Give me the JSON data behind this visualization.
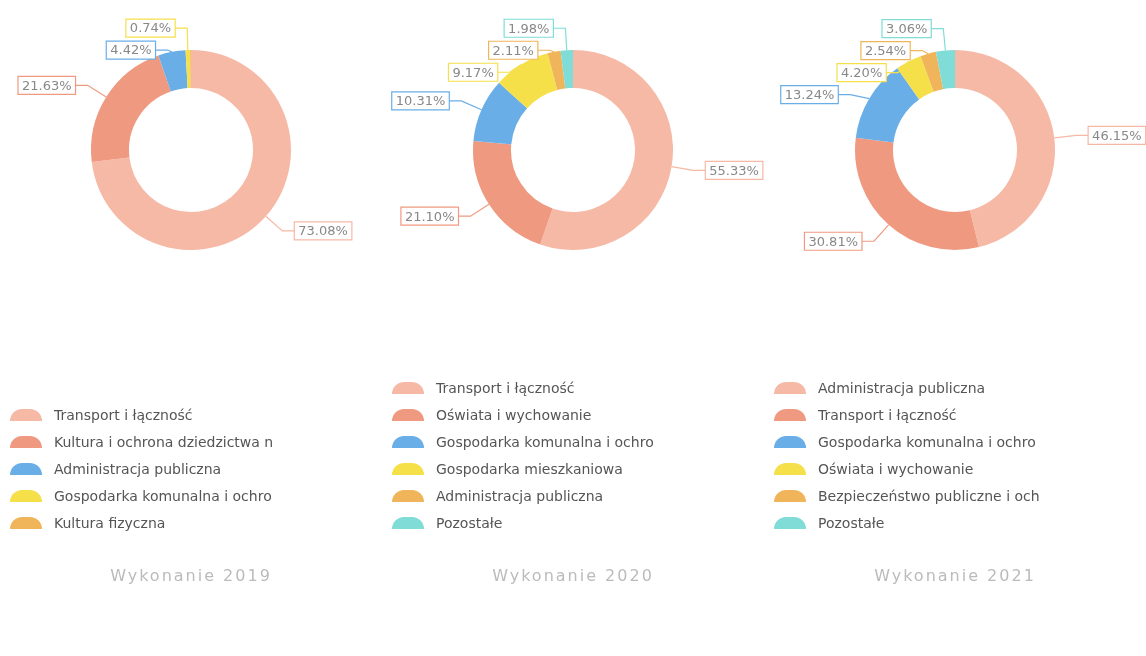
{
  "chart_data": [
    {
      "type": "donut",
      "title": "Wykonanie 2019",
      "categories": [
        "Transport i łączność",
        "Kultura i ochrona dziedzictwa n",
        "Administracja publiczna",
        "Gospodarka komunalna i ochro",
        "Kultura fizyczna"
      ],
      "values": [
        73.08,
        21.63,
        4.42,
        0.74,
        0.13
      ],
      "colors": [
        "#f6b9a6",
        "#ef9a80",
        "#6aaee8",
        "#f5e04a",
        "#f0b55a"
      ],
      "value_labels": [
        "73.08%",
        "21.63%",
        "4.42%",
        "0.74%",
        null
      ],
      "legend": "bottom"
    },
    {
      "type": "donut",
      "title": "Wykonanie 2020",
      "categories": [
        "Transport i łączność",
        "Oświata i wychowanie",
        "Gospodarka komunalna i ochro",
        "Gospodarka mieszkaniowa",
        "Administracja publiczna",
        "Pozostałe"
      ],
      "values": [
        55.33,
        21.1,
        10.31,
        9.17,
        2.11,
        1.98
      ],
      "colors": [
        "#f6b9a6",
        "#ef9a80",
        "#6aaee8",
        "#f5e04a",
        "#f0b55a",
        "#7fdcd6"
      ],
      "value_labels": [
        "55.33%",
        "21.10%",
        "10.31%",
        "9.17%",
        "2.11%",
        "1.98%"
      ],
      "legend": "bottom"
    },
    {
      "type": "donut",
      "title": "Wykonanie 2021",
      "categories": [
        "Administracja publiczna",
        "Transport i łączność",
        "Gospodarka komunalna i ochro",
        "Oświata i wychowanie",
        "Bezpieczeństwo publiczne i och",
        "Pozostałe"
      ],
      "values": [
        46.15,
        30.81,
        13.24,
        4.2,
        2.54,
        3.06
      ],
      "colors": [
        "#f6b9a6",
        "#ef9a80",
        "#6aaee8",
        "#f5e04a",
        "#f0b55a",
        "#7fdcd6"
      ],
      "value_labels": [
        "46.15%",
        "30.81%",
        "13.24%",
        "4.20%",
        "2.54%",
        "3.06%"
      ],
      "legend": "bottom"
    }
  ]
}
